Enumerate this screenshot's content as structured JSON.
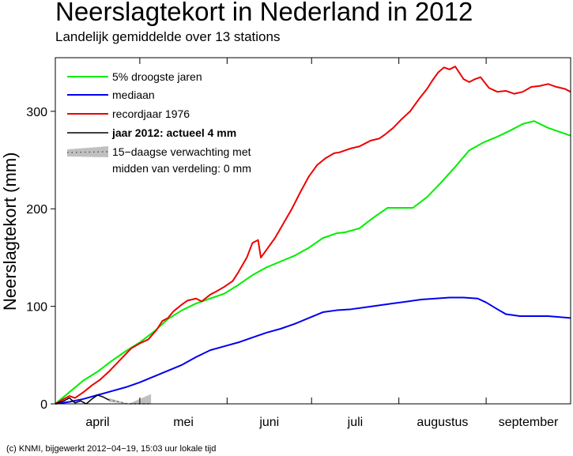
{
  "chart_data": {
    "type": "line",
    "title": "Neerslagtekort in Nederland in 2012",
    "subtitle": "Landelijk gemiddelde over 13 stations",
    "ylabel": "Neerslagtekort (mm)",
    "xlabel": "",
    "xlim": [
      0,
      183
    ],
    "ylim": [
      0,
      355
    ],
    "yticks": [
      0,
      100,
      200,
      300
    ],
    "grid": false,
    "legend_position": "top-left",
    "months": [
      {
        "label": "april",
        "start": 0,
        "end": 30
      },
      {
        "label": "mei",
        "start": 30,
        "end": 61
      },
      {
        "label": "juni",
        "start": 61,
        "end": 91
      },
      {
        "label": "juli",
        "start": 91,
        "end": 122
      },
      {
        "label": "augustus",
        "start": 122,
        "end": 153
      },
      {
        "label": "september",
        "start": 153,
        "end": 183
      }
    ],
    "series": [
      {
        "name": "5% droogste jaren",
        "color": "#00ee00",
        "x": [
          0,
          5,
          10,
          15,
          20,
          25,
          30,
          35,
          40,
          45,
          50,
          55,
          60,
          65,
          70,
          75,
          80,
          85,
          90,
          95,
          100,
          103,
          108,
          113,
          118,
          122,
          127,
          132,
          137,
          142,
          147,
          152,
          157,
          162,
          166,
          170,
          175,
          183
        ],
        "y": [
          0,
          12,
          24,
          33,
          44,
          54,
          63,
          74,
          87,
          96,
          103,
          108,
          113,
          122,
          132,
          140,
          146,
          152,
          160,
          170,
          175,
          176,
          180,
          191,
          201,
          201,
          201,
          212,
          227,
          243,
          260,
          268,
          274,
          281,
          287,
          290,
          283,
          275
        ]
      },
      {
        "name": "mediaan",
        "color": "#0000ee",
        "x": [
          0,
          5,
          10,
          15,
          20,
          25,
          30,
          35,
          40,
          45,
          50,
          55,
          60,
          65,
          70,
          75,
          80,
          85,
          90,
          95,
          100,
          105,
          110,
          115,
          120,
          125,
          130,
          135,
          140,
          145,
          150,
          153,
          157,
          160,
          165,
          170,
          175,
          183
        ],
        "y": [
          0,
          2,
          5,
          9,
          13,
          17,
          22,
          28,
          34,
          40,
          48,
          55,
          59,
          63,
          68,
          73,
          77,
          82,
          88,
          94,
          96,
          97,
          99,
          101,
          103,
          105,
          107,
          108,
          109,
          109,
          108,
          104,
          97,
          92,
          90,
          90,
          90,
          88
        ]
      },
      {
        "name": "recordjaar 1976",
        "color": "#ee0000",
        "x": [
          0,
          3,
          5,
          7,
          10,
          13,
          16,
          19,
          22,
          25,
          27,
          30,
          33,
          36,
          38,
          40,
          42,
          45,
          47,
          50,
          52,
          55,
          57,
          60,
          63,
          65,
          68,
          70,
          72,
          73,
          75,
          78,
          81,
          84,
          87,
          90,
          93,
          96,
          99,
          101,
          103,
          105,
          108,
          110,
          112,
          115,
          117,
          120,
          123,
          126,
          129,
          132,
          134,
          136,
          138,
          140,
          142,
          145,
          147,
          149,
          151,
          154,
          157,
          160,
          163,
          166,
          169,
          172,
          175,
          178,
          181,
          183
        ],
        "y": [
          0,
          5,
          8,
          6,
          12,
          19,
          25,
          33,
          42,
          51,
          57,
          62,
          66,
          76,
          85,
          88,
          95,
          102,
          106,
          108,
          105,
          112,
          115,
          120,
          126,
          135,
          150,
          165,
          168,
          150,
          158,
          170,
          185,
          200,
          217,
          233,
          245,
          252,
          257,
          258,
          260,
          262,
          264,
          267,
          270,
          272,
          276,
          283,
          292,
          300,
          312,
          323,
          332,
          340,
          345,
          343,
          346,
          333,
          330,
          333,
          335,
          324,
          320,
          321,
          318,
          320,
          325,
          326,
          328,
          325,
          323,
          320
        ]
      },
      {
        "name": "jaar 2012: actueel 4 mm",
        "color": "#000000",
        "x": [
          0,
          3,
          5,
          7,
          9,
          11,
          13,
          15,
          17,
          19
        ],
        "y": [
          0,
          3,
          6,
          1,
          3,
          0,
          5,
          9,
          7,
          4
        ]
      }
    ],
    "forecast": {
      "name": "15−daagse verwachting met midden van verdeling: 0 mm",
      "x": [
        19,
        26,
        34
      ],
      "lower": [
        2,
        0,
        0
      ],
      "upper": [
        6,
        0,
        10
      ],
      "median": [
        4,
        0,
        0
      ],
      "color": "#c0c0c0"
    },
    "footer": "(c) KNMI, bijgewerkt 2012−04−19, 15:03 uur lokale tijd"
  },
  "legend": {
    "item1": "5% droogste jaren",
    "item2": "mediaan",
    "item3": "recordjaar 1976",
    "item4": "jaar 2012: actueel 4 mm",
    "item5_line1": "15−daagse verwachting met",
    "item5_line2": "midden van verdeling: 0 mm"
  }
}
